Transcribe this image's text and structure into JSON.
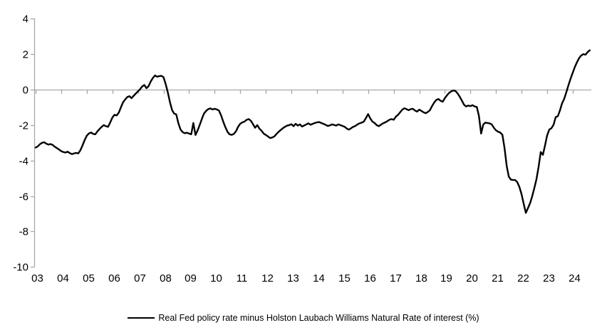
{
  "page": {
    "background": "#ffffff"
  },
  "legend": {
    "label": "Real Fed policy rate minus Holston Laubach Williams Natural Rate of interest (%)"
  },
  "chart_data": {
    "type": "line",
    "title": "",
    "xlabel": "",
    "ylabel": "",
    "grid": "zero-gridline-only",
    "legend_position": "bottom-center",
    "axis_color": "#a9a9a9",
    "text_color": "#000000",
    "ylim": [
      -10,
      4
    ],
    "y_ticks": [
      4,
      2,
      0,
      -2,
      -4,
      -6,
      -8,
      -10
    ],
    "y_tick_labels": [
      "4",
      "2",
      "0",
      "-2",
      "-4",
      "-6",
      "-8",
      "-10"
    ],
    "x_tick_labels": [
      "03",
      "04",
      "05",
      "06",
      "07",
      "08",
      "09",
      "10",
      "11",
      "12",
      "13",
      "14",
      "15",
      "16",
      "17",
      "18",
      "19",
      "20",
      "21",
      "22",
      "23",
      "24"
    ],
    "x_tick_years": [
      2003,
      2004,
      2005,
      2006,
      2007,
      2008,
      2009,
      2010,
      2011,
      2012,
      2013,
      2014,
      2015,
      2016,
      2017,
      2018,
      2019,
      2020,
      2021,
      2022,
      2023,
      2024
    ],
    "series": [
      {
        "name": "Real Fed policy rate minus Holston Laubach Williams Natural Rate of interest (%)",
        "color": "#000000",
        "frequency": "monthly",
        "x_start_year": 2003,
        "x_end": "2024-09",
        "values": [
          -3.27,
          -3.2,
          -3.08,
          -3.0,
          -2.97,
          -3.05,
          -3.1,
          -3.07,
          -3.12,
          -3.22,
          -3.3,
          -3.38,
          -3.47,
          -3.52,
          -3.55,
          -3.5,
          -3.58,
          -3.64,
          -3.6,
          -3.57,
          -3.6,
          -3.42,
          -3.15,
          -2.85,
          -2.6,
          -2.47,
          -2.42,
          -2.5,
          -2.52,
          -2.35,
          -2.22,
          -2.1,
          -2.0,
          -2.06,
          -2.1,
          -1.85,
          -1.58,
          -1.42,
          -1.46,
          -1.3,
          -1.0,
          -0.72,
          -0.56,
          -0.42,
          -0.37,
          -0.48,
          -0.35,
          -0.22,
          -0.1,
          0.02,
          0.18,
          0.26,
          0.08,
          0.2,
          0.45,
          0.65,
          0.8,
          0.73,
          0.76,
          0.78,
          0.7,
          0.32,
          -0.15,
          -0.7,
          -1.15,
          -1.35,
          -1.4,
          -1.9,
          -2.25,
          -2.4,
          -2.46,
          -2.43,
          -2.48,
          -2.52,
          -1.88,
          -2.56,
          -2.3,
          -1.98,
          -1.65,
          -1.35,
          -1.2,
          -1.1,
          -1.06,
          -1.12,
          -1.08,
          -1.12,
          -1.18,
          -1.45,
          -1.8,
          -2.12,
          -2.38,
          -2.52,
          -2.55,
          -2.5,
          -2.35,
          -2.1,
          -1.92,
          -1.85,
          -1.8,
          -1.7,
          -1.66,
          -1.76,
          -1.95,
          -2.15,
          -2.0,
          -2.2,
          -2.32,
          -2.48,
          -2.56,
          -2.64,
          -2.73,
          -2.7,
          -2.64,
          -2.5,
          -2.38,
          -2.28,
          -2.18,
          -2.1,
          -2.03,
          -2.0,
          -1.95,
          -2.06,
          -1.93,
          -2.03,
          -1.96,
          -2.08,
          -2.02,
          -1.96,
          -1.9,
          -1.98,
          -1.93,
          -1.88,
          -1.85,
          -1.83,
          -1.88,
          -1.93,
          -1.98,
          -2.05,
          -2.02,
          -1.96,
          -1.99,
          -2.03,
          -1.96,
          -2.0,
          -2.05,
          -2.1,
          -2.2,
          -2.26,
          -2.18,
          -2.1,
          -2.05,
          -1.96,
          -1.9,
          -1.86,
          -1.8,
          -1.6,
          -1.38,
          -1.62,
          -1.8,
          -1.88,
          -2.0,
          -2.06,
          -1.98,
          -1.9,
          -1.85,
          -1.78,
          -1.7,
          -1.66,
          -1.7,
          -1.53,
          -1.43,
          -1.28,
          -1.13,
          -1.05,
          -1.1,
          -1.16,
          -1.1,
          -1.08,
          -1.18,
          -1.24,
          -1.13,
          -1.2,
          -1.28,
          -1.33,
          -1.26,
          -1.16,
          -0.93,
          -0.73,
          -0.58,
          -0.53,
          -0.63,
          -0.68,
          -0.48,
          -0.32,
          -0.18,
          -0.1,
          -0.05,
          -0.08,
          -0.22,
          -0.4,
          -0.62,
          -0.85,
          -0.95,
          -0.9,
          -0.93,
          -0.88,
          -0.95,
          -0.98,
          -1.5,
          -2.48,
          -1.97,
          -1.86,
          -1.88,
          -1.9,
          -1.96,
          -2.15,
          -2.3,
          -2.38,
          -2.42,
          -2.55,
          -3.3,
          -4.3,
          -4.9,
          -5.08,
          -5.1,
          -5.1,
          -5.22,
          -5.5,
          -5.9,
          -6.45,
          -6.95,
          -6.68,
          -6.4,
          -6.0,
          -5.55,
          -5.05,
          -4.35,
          -3.52,
          -3.68,
          -3.15,
          -2.58,
          -2.25,
          -2.18,
          -1.98,
          -1.55,
          -1.5,
          -1.18,
          -0.78,
          -0.52,
          -0.15,
          0.25,
          0.62,
          0.95,
          1.28,
          1.55,
          1.78,
          1.93,
          2.0,
          1.97,
          2.12,
          2.22
        ]
      }
    ]
  }
}
